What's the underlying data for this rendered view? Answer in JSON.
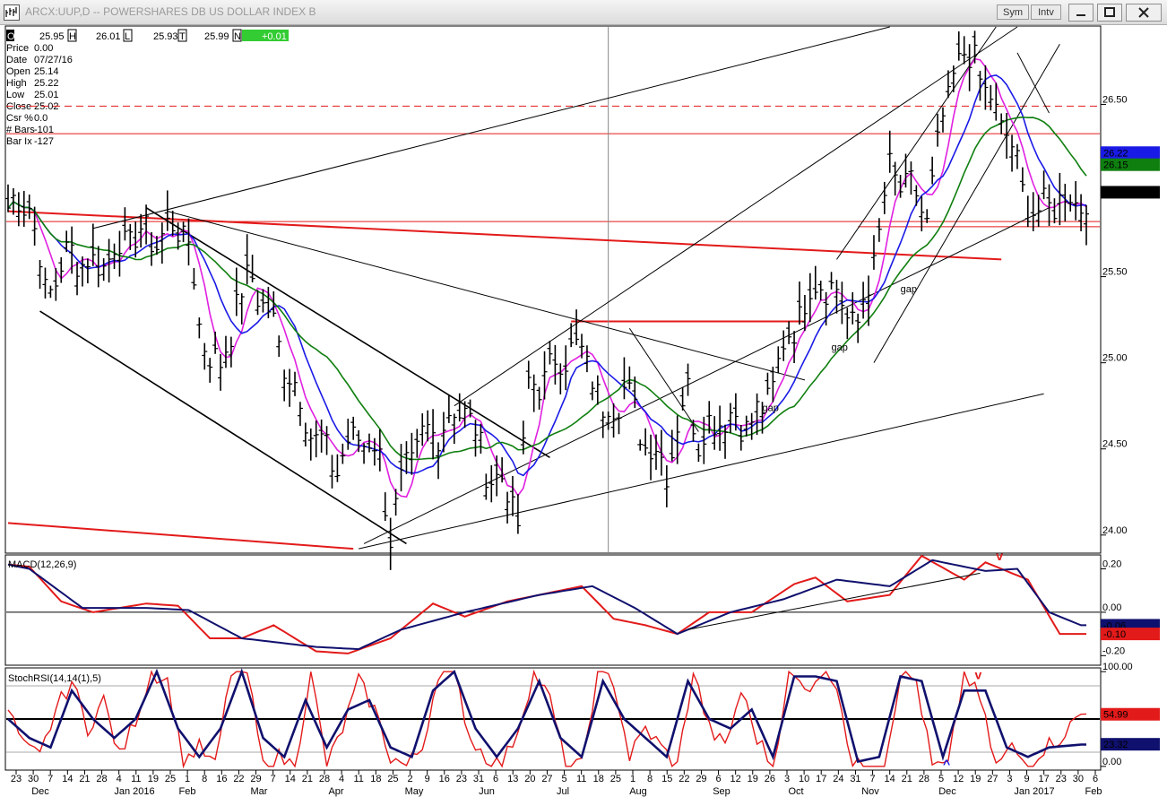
{
  "window": {
    "title": "ARCX:UUP,D -- POWERSHARES DB US DOLLAR INDEX B",
    "buttons": [
      "Sym",
      "Intv"
    ]
  },
  "quote_bar": [
    {
      "key": "O",
      "value": "25.95"
    },
    {
      "key": "H",
      "value": "26.01"
    },
    {
      "key": "L",
      "value": "25.93"
    },
    {
      "key": "T",
      "value": "25.99"
    },
    {
      "key": "N",
      "value": "+0.01"
    }
  ],
  "info_panel": [
    {
      "key": "Price",
      "value": "0.00"
    },
    {
      "key": "Date",
      "value": "07/27/16"
    },
    {
      "key": "Open",
      "value": "25.14"
    },
    {
      "key": "High",
      "value": "25.22"
    },
    {
      "key": "Low",
      "value": "25.01"
    },
    {
      "key": "Close",
      "value": "25.02"
    },
    {
      "key": "Csr %",
      "value": "0.0"
    },
    {
      "key": "# Bars",
      "value": "-101"
    },
    {
      "key": "Bar Ix",
      "value": "-127"
    }
  ],
  "colors": {
    "price_bars": "#000000",
    "ma_fast": "#e020e0",
    "ma_mid": "#1a1ae6",
    "ma_slow": "#0f7f0f",
    "trend_red": "#e31a1a",
    "macd_line": "#e31a1a",
    "macd_signal": "#10106e",
    "stoch_fast": "#e31a1a",
    "stoch_slow": "#10106e",
    "highlight_green": "#33cc33"
  },
  "chart_data": [
    {
      "type": "bar",
      "ylim": [
        23.9,
        26.95
      ],
      "y_ticks": [
        "26.50",
        "25.50",
        "25.00",
        "24.50",
        "24.00"
      ],
      "y_tick_values": [
        26.5,
        25.5,
        25.0,
        24.5,
        24.0
      ],
      "last_values": [
        {
          "label": "26.22",
          "value": 26.22,
          "color": "#1a1ae6"
        },
        {
          "label": "26.15",
          "value": 26.15,
          "color": "#0f7f0f"
        },
        {
          "label": "25.99",
          "value": 25.99,
          "color": "#000000"
        }
      ],
      "annotations": [
        {
          "text": "gap",
          "x_index": 168,
          "value": 25.41
        },
        {
          "text": "gap",
          "x_index": 155,
          "value": 25.07
        },
        {
          "text": "gap",
          "x_index": 142,
          "value": 24.72
        }
      ],
      "horizontal_levels": [
        {
          "value": 26.49,
          "style": "dashed",
          "color": "#e31a1a"
        },
        {
          "value": 26.33,
          "style": "solid",
          "color": "#e31a1a"
        },
        {
          "value": 25.82,
          "style": "solid",
          "color": "#e31a1a"
        },
        {
          "value": 25.79,
          "style": "solid",
          "color": "#e31a1a",
          "from_index": 160
        },
        {
          "value": 25.24,
          "style": "solid",
          "color": "#e31a1a",
          "from_index": 106,
          "to_index": 150
        }
      ],
      "cursor_index": 113
    },
    {
      "type": "line",
      "title": "MACD(12,26,9)",
      "ylim": [
        -0.24,
        0.26
      ],
      "y_ticks": [
        "0.20",
        "0.00",
        "-0.20"
      ],
      "y_tick_values": [
        0.2,
        0.0,
        -0.2
      ],
      "last_values": [
        {
          "label": "-0.06",
          "value": -0.06,
          "color": "#10106e"
        },
        {
          "label": "-0.10",
          "value": -0.1,
          "color": "#e31a1a"
        }
      ],
      "marker": "v",
      "series": [
        {
          "name": "MACD",
          "anchors": [
            [
              0,
              0.22
            ],
            [
              4,
              0.21
            ],
            [
              10,
              0.05
            ],
            [
              16,
              0.0
            ],
            [
              26,
              0.04
            ],
            [
              32,
              0.03
            ],
            [
              38,
              -0.12
            ],
            [
              44,
              -0.12
            ],
            [
              50,
              -0.06
            ],
            [
              58,
              -0.18
            ],
            [
              64,
              -0.19
            ],
            [
              72,
              -0.12
            ],
            [
              80,
              0.04
            ],
            [
              86,
              -0.02
            ],
            [
              94,
              0.05
            ],
            [
              102,
              0.09
            ],
            [
              108,
              0.12
            ],
            [
              114,
              -0.03
            ],
            [
              120,
              -0.06
            ],
            [
              126,
              -0.1
            ],
            [
              132,
              0.0
            ],
            [
              140,
              0.0
            ],
            [
              148,
              0.13
            ],
            [
              152,
              0.16
            ],
            [
              158,
              0.05
            ],
            [
              166,
              0.08
            ],
            [
              172,
              0.26
            ],
            [
              180,
              0.15
            ],
            [
              184,
              0.23
            ],
            [
              192,
              0.15
            ],
            [
              198,
              -0.1
            ],
            [
              202,
              -0.1
            ]
          ]
        },
        {
          "name": "Signal",
          "anchors": [
            [
              0,
              0.22
            ],
            [
              4,
              0.2
            ],
            [
              14,
              0.02
            ],
            [
              26,
              0.02
            ],
            [
              34,
              0.01
            ],
            [
              44,
              -0.12
            ],
            [
              58,
              -0.16
            ],
            [
              66,
              -0.17
            ],
            [
              74,
              -0.08
            ],
            [
              86,
              0.0
            ],
            [
              100,
              0.08
            ],
            [
              110,
              0.12
            ],
            [
              118,
              0.02
            ],
            [
              126,
              -0.1
            ],
            [
              136,
              0.0
            ],
            [
              146,
              0.06
            ],
            [
              156,
              0.15
            ],
            [
              166,
              0.12
            ],
            [
              174,
              0.24
            ],
            [
              184,
              0.19
            ],
            [
              190,
              0.2
            ],
            [
              196,
              0.0
            ],
            [
              202,
              -0.06
            ]
          ]
        }
      ]
    },
    {
      "type": "line",
      "title": "StochRSI(14,14(1),5)",
      "ylim": [
        -3,
        103
      ],
      "y_ticks": [
        "100.00",
        "0.00"
      ],
      "y_tick_values": [
        100,
        0
      ],
      "last_values": [
        {
          "label": "54.99",
          "value": 54.99,
          "color": "#e31a1a"
        },
        {
          "label": "23.32",
          "value": 23.32,
          "color": "#10106e"
        }
      ],
      "marker_top": "v",
      "marker_bottom": "^",
      "series": [
        {
          "name": "StochRSI",
          "anchors": [
            [
              0,
              60
            ],
            [
              3,
              20
            ],
            [
              6,
              10
            ],
            [
              9,
              60
            ],
            [
              12,
              90
            ],
            [
              15,
              40
            ],
            [
              18,
              70
            ],
            [
              21,
              10
            ],
            [
              24,
              50
            ],
            [
              27,
              100
            ],
            [
              30,
              90
            ],
            [
              33,
              5
            ],
            [
              36,
              20
            ],
            [
              39,
              0
            ],
            [
              42,
              100
            ],
            [
              45,
              100
            ],
            [
              48,
              0
            ],
            [
              51,
              10
            ],
            [
              54,
              0
            ],
            [
              57,
              100
            ],
            [
              60,
              0
            ],
            [
              63,
              40
            ],
            [
              66,
              90
            ],
            [
              69,
              60
            ],
            [
              72,
              10
            ],
            [
              75,
              0
            ],
            [
              78,
              20
            ],
            [
              81,
              100
            ],
            [
              84,
              100
            ],
            [
              87,
              30
            ],
            [
              90,
              10
            ],
            [
              93,
              0
            ],
            [
              96,
              40
            ],
            [
              99,
              100
            ],
            [
              102,
              70
            ],
            [
              105,
              0
            ],
            [
              108,
              0
            ],
            [
              111,
              100
            ],
            [
              114,
              90
            ],
            [
              117,
              10
            ],
            [
              120,
              40
            ],
            [
              123,
              20
            ],
            [
              126,
              0
            ],
            [
              129,
              100
            ],
            [
              132,
              40
            ],
            [
              135,
              20
            ],
            [
              138,
              80
            ],
            [
              141,
              30
            ],
            [
              144,
              0
            ],
            [
              147,
              100
            ],
            [
              150,
              80
            ],
            [
              153,
              100
            ],
            [
              156,
              90
            ],
            [
              159,
              0
            ],
            [
              162,
              0
            ],
            [
              165,
              0
            ],
            [
              168,
              100
            ],
            [
              171,
              90
            ],
            [
              174,
              0
            ],
            [
              177,
              0
            ],
            [
              180,
              100
            ],
            [
              183,
              70
            ],
            [
              186,
              0
            ],
            [
              189,
              20
            ],
            [
              192,
              0
            ],
            [
              195,
              20
            ],
            [
              198,
              30
            ],
            [
              202,
              55
            ]
          ]
        },
        {
          "name": "Slow",
          "anchors": [
            [
              0,
              50
            ],
            [
              4,
              30
            ],
            [
              8,
              20
            ],
            [
              12,
              80
            ],
            [
              16,
              50
            ],
            [
              20,
              30
            ],
            [
              24,
              50
            ],
            [
              28,
              100
            ],
            [
              32,
              40
            ],
            [
              36,
              10
            ],
            [
              40,
              40
            ],
            [
              44,
              100
            ],
            [
              48,
              30
            ],
            [
              52,
              10
            ],
            [
              56,
              70
            ],
            [
              60,
              20
            ],
            [
              64,
              60
            ],
            [
              68,
              70
            ],
            [
              72,
              20
            ],
            [
              76,
              10
            ],
            [
              80,
              80
            ],
            [
              84,
              100
            ],
            [
              88,
              40
            ],
            [
              92,
              10
            ],
            [
              96,
              40
            ],
            [
              100,
              90
            ],
            [
              104,
              30
            ],
            [
              108,
              10
            ],
            [
              112,
              90
            ],
            [
              116,
              50
            ],
            [
              120,
              30
            ],
            [
              124,
              10
            ],
            [
              128,
              90
            ],
            [
              132,
              50
            ],
            [
              136,
              40
            ],
            [
              140,
              60
            ],
            [
              144,
              10
            ],
            [
              148,
              95
            ],
            [
              152,
              95
            ],
            [
              156,
              90
            ],
            [
              160,
              5
            ],
            [
              164,
              10
            ],
            [
              168,
              95
            ],
            [
              172,
              90
            ],
            [
              176,
              10
            ],
            [
              180,
              80
            ],
            [
              184,
              80
            ],
            [
              188,
              20
            ],
            [
              192,
              10
            ],
            [
              196,
              20
            ],
            [
              202,
              23
            ]
          ]
        }
      ]
    }
  ],
  "x_axis": {
    "day_labels": [
      "23",
      "30",
      "7",
      "14",
      "21",
      "28",
      "4",
      "11",
      "19",
      "25",
      "1",
      "8",
      "16",
      "22",
      "29",
      "7",
      "14",
      "21",
      "28",
      "4",
      "11",
      "18",
      "25",
      "2",
      "9",
      "16",
      "23",
      "31",
      "6",
      "13",
      "20",
      "27",
      "5",
      "11",
      "18",
      "25",
      "1",
      "8",
      "15",
      "22",
      "29",
      "6",
      "12",
      "19",
      "26",
      "3",
      "10",
      "17",
      "24",
      "31",
      "7",
      "14",
      "21",
      "28",
      "5",
      "12",
      "19",
      "27",
      "3",
      "9",
      "17",
      "23",
      "30",
      "6"
    ],
    "month_labels": [
      "Dec",
      "Jan 2016",
      "Feb",
      "Mar",
      "Apr",
      "May",
      "Jun",
      "Jul",
      "Aug",
      "Sep",
      "Oct",
      "Nov",
      "Dec",
      "Jan 2017",
      "Feb"
    ]
  },
  "price_series": {
    "anchors": [
      [
        0,
        25.9
      ],
      [
        4,
        25.95
      ],
      [
        7,
        25.4
      ],
      [
        12,
        25.65
      ],
      [
        16,
        25.55
      ],
      [
        20,
        25.65
      ],
      [
        24,
        25.75
      ],
      [
        28,
        25.72
      ],
      [
        32,
        25.8
      ],
      [
        34,
        25.7
      ],
      [
        36,
        25.2
      ],
      [
        40,
        24.95
      ],
      [
        43,
        25.35
      ],
      [
        46,
        25.5
      ],
      [
        50,
        25.2
      ],
      [
        54,
        24.85
      ],
      [
        58,
        24.55
      ],
      [
        62,
        24.4
      ],
      [
        66,
        24.6
      ],
      [
        70,
        24.45
      ],
      [
        72,
        24.0
      ],
      [
        75,
        24.4
      ],
      [
        78,
        24.55
      ],
      [
        82,
        24.65
      ],
      [
        86,
        24.75
      ],
      [
        90,
        24.4
      ],
      [
        94,
        24.25
      ],
      [
        96,
        24.1
      ],
      [
        98,
        24.85
      ],
      [
        102,
        24.95
      ],
      [
        106,
        25.1
      ],
      [
        110,
        24.95
      ],
      [
        112,
        24.7
      ],
      [
        116,
        24.85
      ],
      [
        120,
        24.55
      ],
      [
        124,
        24.4
      ],
      [
        128,
        24.85
      ],
      [
        130,
        24.55
      ],
      [
        134,
        24.7
      ],
      [
        138,
        24.65
      ],
      [
        142,
        24.7
      ],
      [
        145,
        25.0
      ],
      [
        149,
        25.3
      ],
      [
        153,
        25.5
      ],
      [
        157,
        25.35
      ],
      [
        160,
        25.2
      ],
      [
        163,
        25.6
      ],
      [
        166,
        26.1
      ],
      [
        170,
        26.0
      ],
      [
        173,
        25.85
      ],
      [
        176,
        26.4
      ],
      [
        178,
        26.7
      ],
      [
        182,
        26.8
      ],
      [
        184,
        26.55
      ],
      [
        188,
        26.35
      ],
      [
        191,
        26.0
      ],
      [
        194,
        25.85
      ],
      [
        197,
        25.95
      ]
    ]
  }
}
